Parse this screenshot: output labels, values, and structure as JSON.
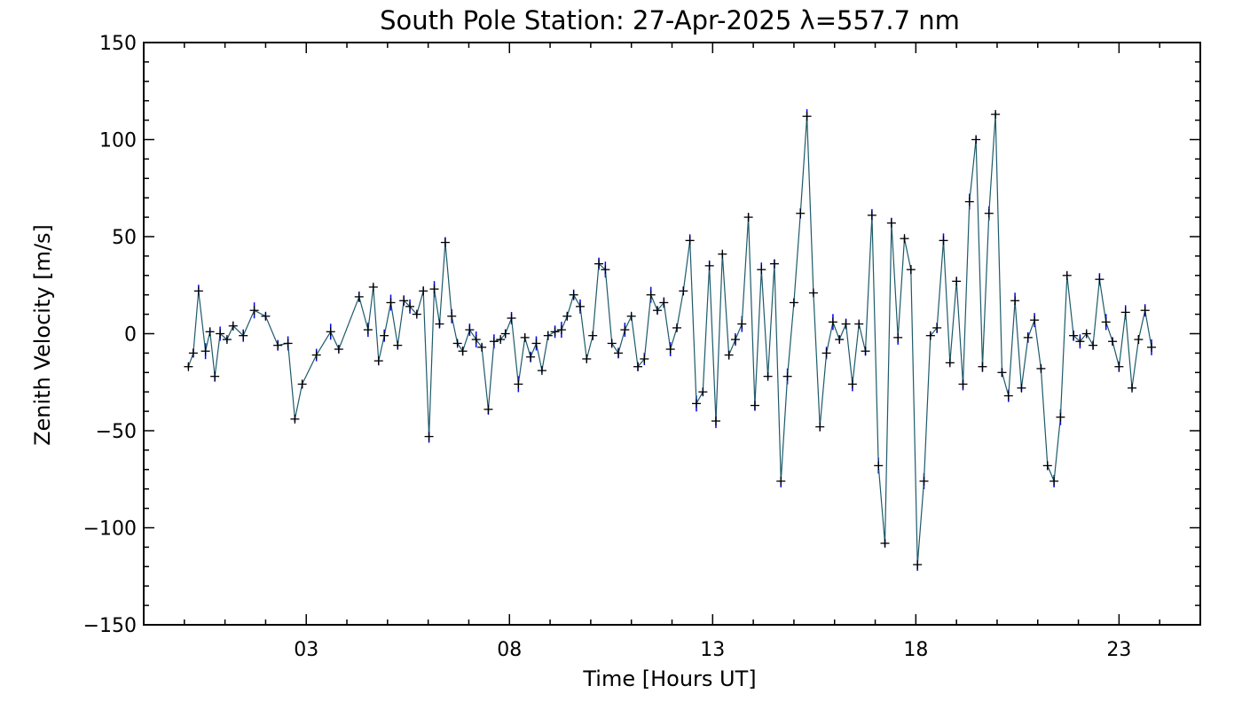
{
  "chart_data": {
    "type": "line",
    "title": "South Pole Station: 27-Apr-2025 λ=557.7 nm",
    "xlabel": "Time [Hours UT]",
    "ylabel": "Zenith Velocity [m/s]",
    "xlim": [
      -1,
      25
    ],
    "ylim": [
      -150,
      150
    ],
    "x_ticks": [
      3,
      8,
      13,
      18,
      23
    ],
    "x_tick_labels": [
      "03",
      "08",
      "13",
      "18",
      "23"
    ],
    "y_ticks": [
      -150,
      -100,
      -50,
      0,
      50,
      100,
      150
    ],
    "y_tick_labels": [
      "-150",
      "-100",
      "-50",
      "0",
      "50",
      "100",
      "150"
    ],
    "colors": {
      "line": "#1d5a6a",
      "error_bar": "#0000ff",
      "marker": "#000000"
    },
    "series": [
      {
        "name": "Zenith Velocity",
        "x": [
          0.1,
          0.22,
          0.35,
          0.52,
          0.63,
          0.75,
          0.88,
          1.05,
          1.2,
          1.45,
          1.72,
          2.0,
          2.3,
          2.55,
          2.72,
          2.9,
          3.25,
          3.6,
          3.8,
          4.3,
          4.52,
          4.65,
          4.78,
          4.92,
          5.08,
          5.25,
          5.4,
          5.55,
          5.72,
          5.88,
          6.02,
          6.15,
          6.28,
          6.42,
          6.58,
          6.72,
          6.85,
          7.02,
          7.18,
          7.32,
          7.48,
          7.62,
          7.78,
          7.9,
          8.05,
          8.22,
          8.38,
          8.52,
          8.66,
          8.8,
          8.95,
          9.12,
          9.28,
          9.42,
          9.58,
          9.74,
          9.9,
          10.05,
          10.2,
          10.36,
          10.52,
          10.68,
          10.84,
          11.0,
          11.16,
          11.32,
          11.48,
          11.64,
          11.8,
          11.96,
          12.12,
          12.28,
          12.44,
          12.6,
          12.76,
          12.92,
          13.08,
          13.24,
          13.4,
          13.56,
          13.72,
          13.88,
          14.04,
          14.2,
          14.36,
          14.52,
          14.68,
          14.84,
          15.0,
          15.16,
          15.32,
          15.48,
          15.64,
          15.8,
          15.96,
          16.12,
          16.28,
          16.44,
          16.6,
          16.76,
          16.92,
          17.08,
          17.24,
          17.4,
          17.56,
          17.72,
          17.88,
          18.04,
          18.2,
          18.36,
          18.52,
          18.68,
          18.84,
          19.0,
          19.16,
          19.32,
          19.48,
          19.64,
          19.8,
          19.96,
          20.12,
          20.28,
          20.44,
          20.6,
          20.76,
          20.92,
          21.08,
          21.24,
          21.4,
          21.56,
          21.72,
          21.88,
          22.04,
          22.2,
          22.36,
          22.52,
          22.68,
          22.84,
          23.0,
          23.16,
          23.32,
          23.48,
          23.64,
          23.8
        ],
        "y": [
          -17,
          -10,
          22,
          -9,
          1,
          -22,
          0,
          -3,
          4,
          -1,
          12,
          9,
          -6,
          -5,
          -44,
          -26,
          -11,
          1,
          -8,
          19,
          2,
          24,
          -14,
          -1,
          16,
          -6,
          17,
          14,
          10,
          22,
          -53,
          23,
          5,
          47,
          9,
          -5,
          -9,
          2,
          -3,
          -7,
          -39,
          -4,
          -3,
          0,
          8,
          -26,
          -2,
          -12,
          -5,
          -19,
          -1,
          1,
          2,
          9,
          20,
          14,
          -13,
          -1,
          36,
          33,
          -5,
          -10,
          2,
          9,
          -17,
          -13,
          20,
          12,
          16,
          -8,
          3,
          22,
          48,
          -36,
          -30,
          35,
          -45,
          41,
          -11,
          -3,
          5,
          60,
          -37,
          33,
          -22,
          36,
          -76,
          -22,
          16,
          62,
          112,
          21,
          -48,
          -10,
          6,
          -3,
          5,
          -26,
          5,
          -9,
          61,
          -68,
          -108,
          57,
          -2,
          49,
          33,
          -119,
          -76,
          -1,
          3,
          48,
          -15,
          27,
          -26,
          68,
          100,
          -17,
          62,
          113,
          -20,
          -32,
          17,
          -28,
          -2,
          7,
          -18,
          -68,
          -76,
          -43,
          30,
          -1,
          -4,
          0,
          -6,
          28,
          6,
          -4,
          -17,
          11,
          -28,
          -3,
          12,
          -7
        ]
      }
    ]
  }
}
